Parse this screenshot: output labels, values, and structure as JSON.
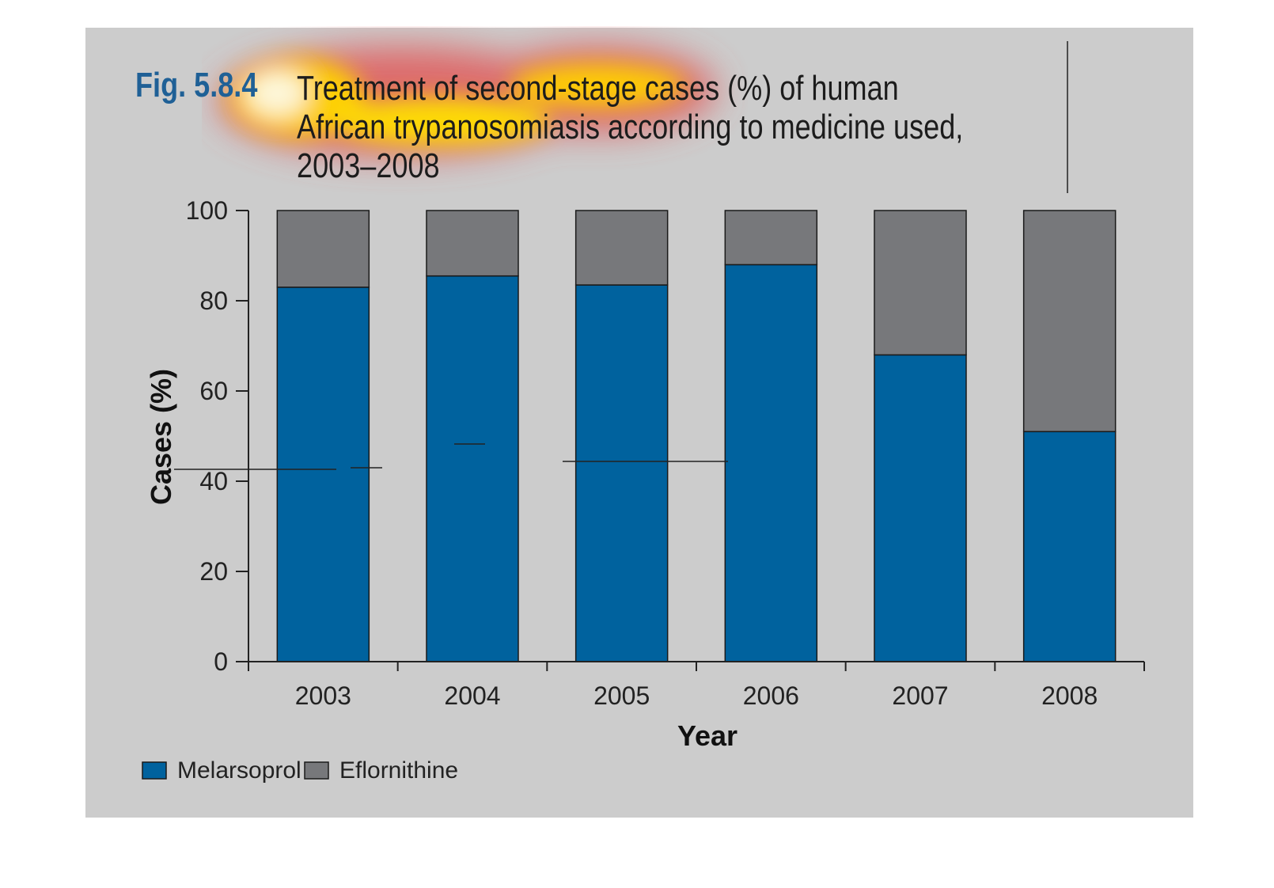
{
  "figure": {
    "label": "Fig. 5.8.4",
    "title_lines": [
      "Treatment of second-stage cases (%) of human",
      "African trypanosomiasis according to medicine used,",
      "2003–2008"
    ]
  },
  "colors": {
    "background": "#cccccc",
    "melarsoprol": "#00629e",
    "eflornithine": "#77787b",
    "label_blue": "#1f6096"
  },
  "chart_data": {
    "type": "bar",
    "stacked": true,
    "title": "Treatment of second-stage cases (%) of human African trypanosomiasis according to medicine used, 2003–2008",
    "xlabel": "Year",
    "ylabel": "Cases (%)",
    "ylim": [
      0,
      100
    ],
    "yticks": [
      0,
      20,
      40,
      60,
      80,
      100
    ],
    "categories": [
      "2003",
      "2004",
      "2005",
      "2006",
      "2007",
      "2008"
    ],
    "series": [
      {
        "name": "Melarsoprol",
        "values": [
          83,
          85.5,
          83.5,
          88,
          68,
          51
        ]
      },
      {
        "name": "Eflornithine",
        "values": [
          17,
          14.5,
          16.5,
          12,
          32,
          49
        ]
      }
    ],
    "legend_position": "bottom-left",
    "grid": false
  }
}
